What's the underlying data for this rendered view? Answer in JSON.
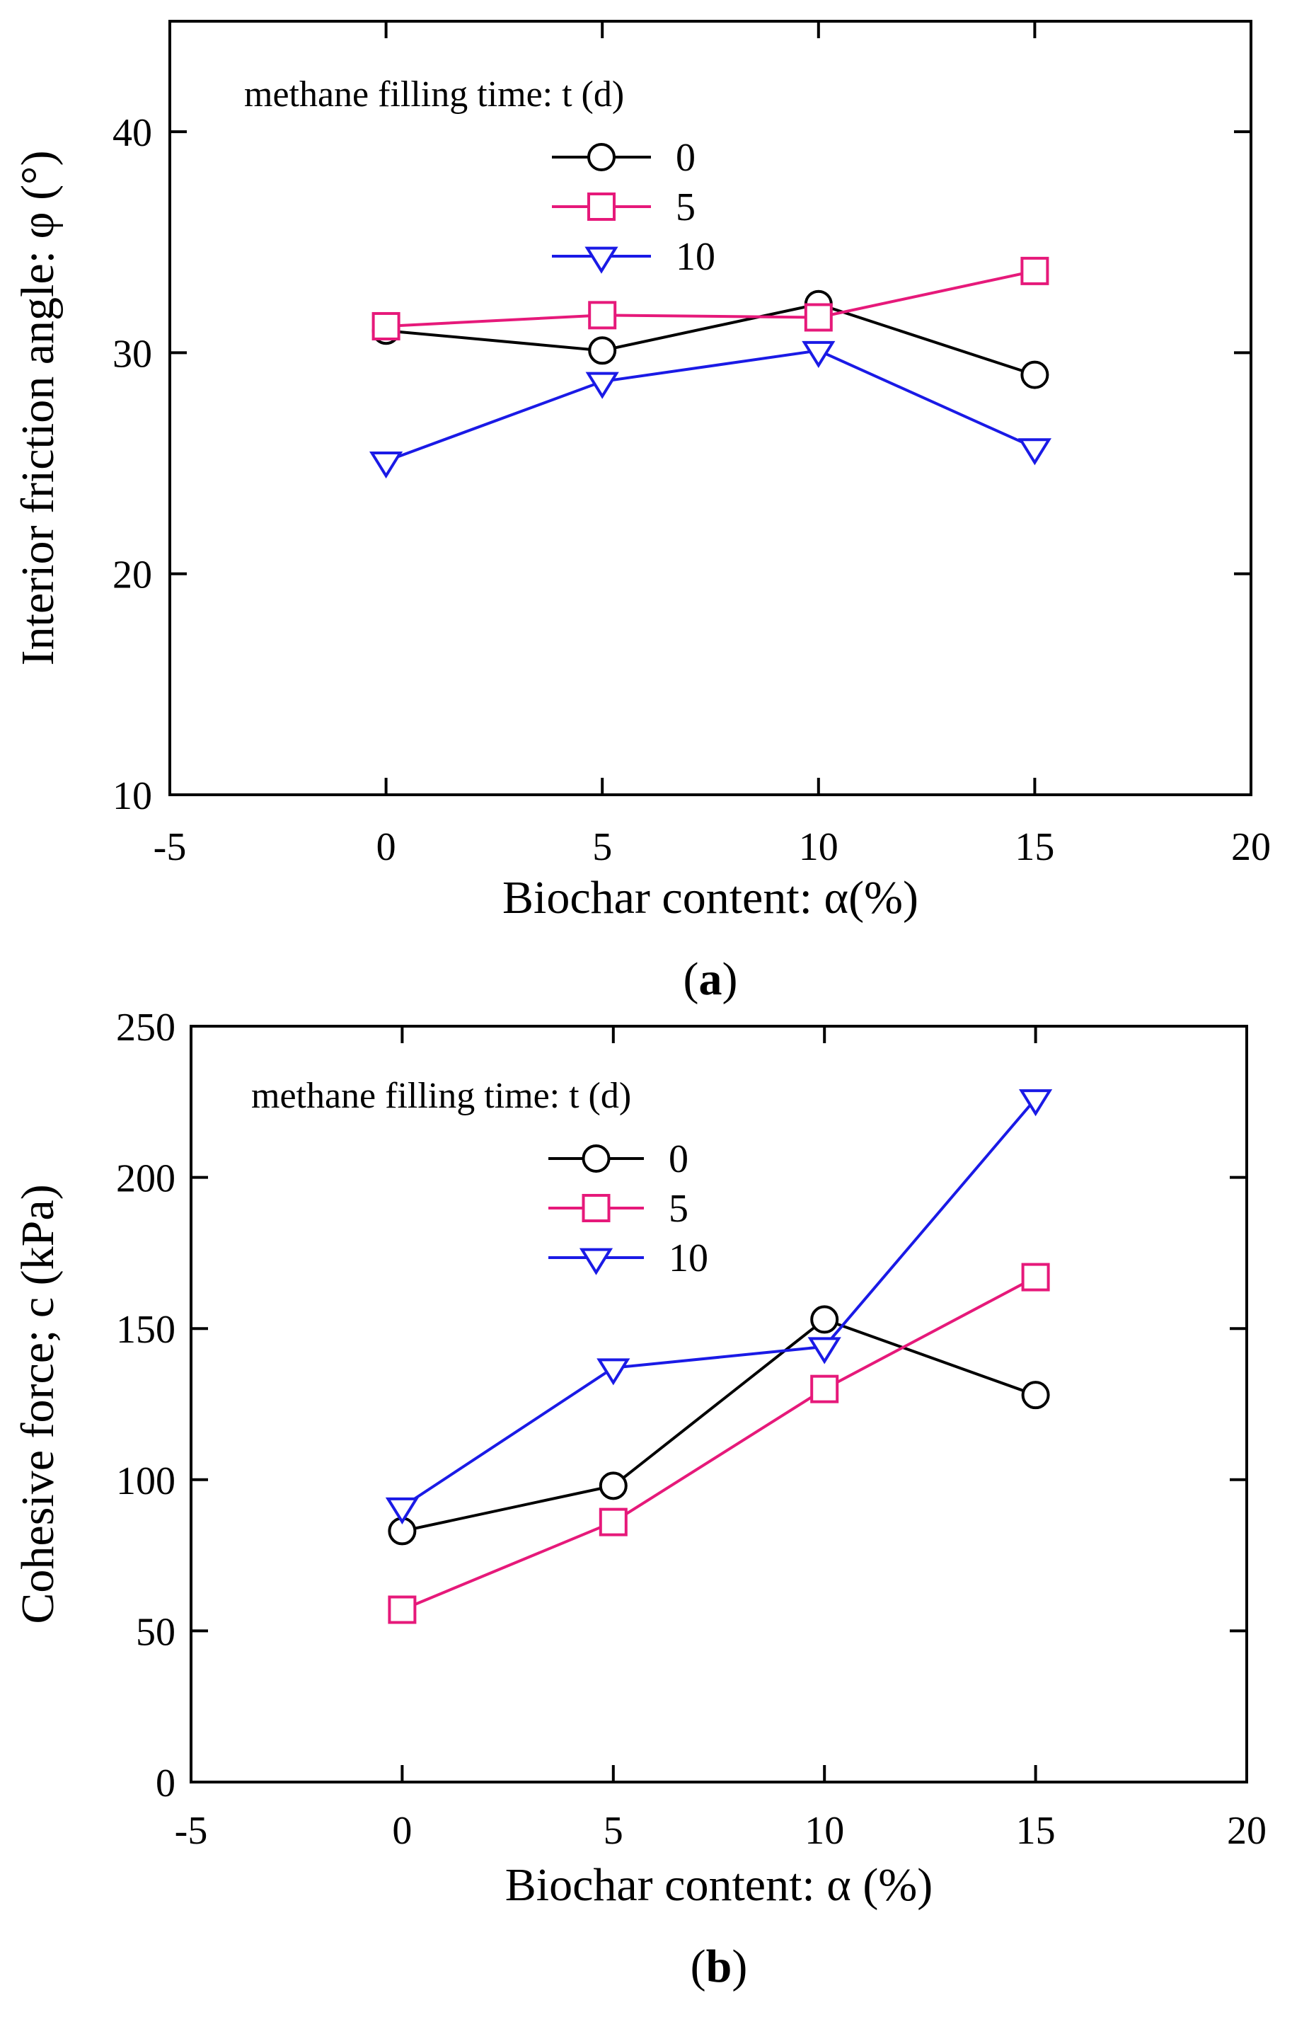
{
  "chart_data": [
    {
      "type": "line",
      "panel": "a",
      "caption_open": "(",
      "caption_letter": "a",
      "caption_close": ")",
      "xlabel": "Biochar content: α(%)",
      "ylabel": "Interior friction angle: φ (°)",
      "xlim": [
        -5,
        20
      ],
      "ylim": [
        10,
        45
      ],
      "xticks": [
        -5,
        0,
        5,
        10,
        15,
        20
      ],
      "yticks": [
        10,
        20,
        30,
        40
      ],
      "grid": false,
      "legend_position": "top-center",
      "legend_title": "methane filling time: t (d)",
      "x": [
        0,
        5,
        10,
        15
      ],
      "series": [
        {
          "name": "0",
          "color": "#000000",
          "marker": "circle",
          "values": [
            31.0,
            30.1,
            32.2,
            29.0
          ]
        },
        {
          "name": "5",
          "color": "#e6197a",
          "marker": "square",
          "values": [
            31.2,
            31.7,
            31.6,
            33.7
          ]
        },
        {
          "name": "10",
          "color": "#1a1ae6",
          "marker": "triangle-down",
          "values": [
            25.1,
            28.7,
            30.1,
            25.7
          ]
        }
      ]
    },
    {
      "type": "line",
      "panel": "b",
      "caption_open": "(",
      "caption_letter": "b",
      "caption_close": ")",
      "xlabel": "Biochar content: α (%)",
      "ylabel": "Cohesive force; c (kPa)",
      "xlim": [
        -5,
        20
      ],
      "ylim": [
        0,
        250
      ],
      "xticks": [
        -5,
        0,
        5,
        10,
        15,
        20
      ],
      "yticks": [
        0,
        50,
        100,
        150,
        200,
        250
      ],
      "grid": false,
      "legend_position": "top-center",
      "legend_title": "methane filling time: t (d)",
      "x": [
        0,
        5,
        10,
        15
      ],
      "series": [
        {
          "name": "0",
          "color": "#000000",
          "marker": "circle",
          "values": [
            83,
            98,
            153,
            128
          ]
        },
        {
          "name": "5",
          "color": "#e6197a",
          "marker": "square",
          "values": [
            57,
            86,
            130,
            167
          ]
        },
        {
          "name": "10",
          "color": "#1a1ae6",
          "marker": "triangle-down",
          "values": [
            91,
            137,
            144,
            226
          ]
        }
      ]
    }
  ]
}
